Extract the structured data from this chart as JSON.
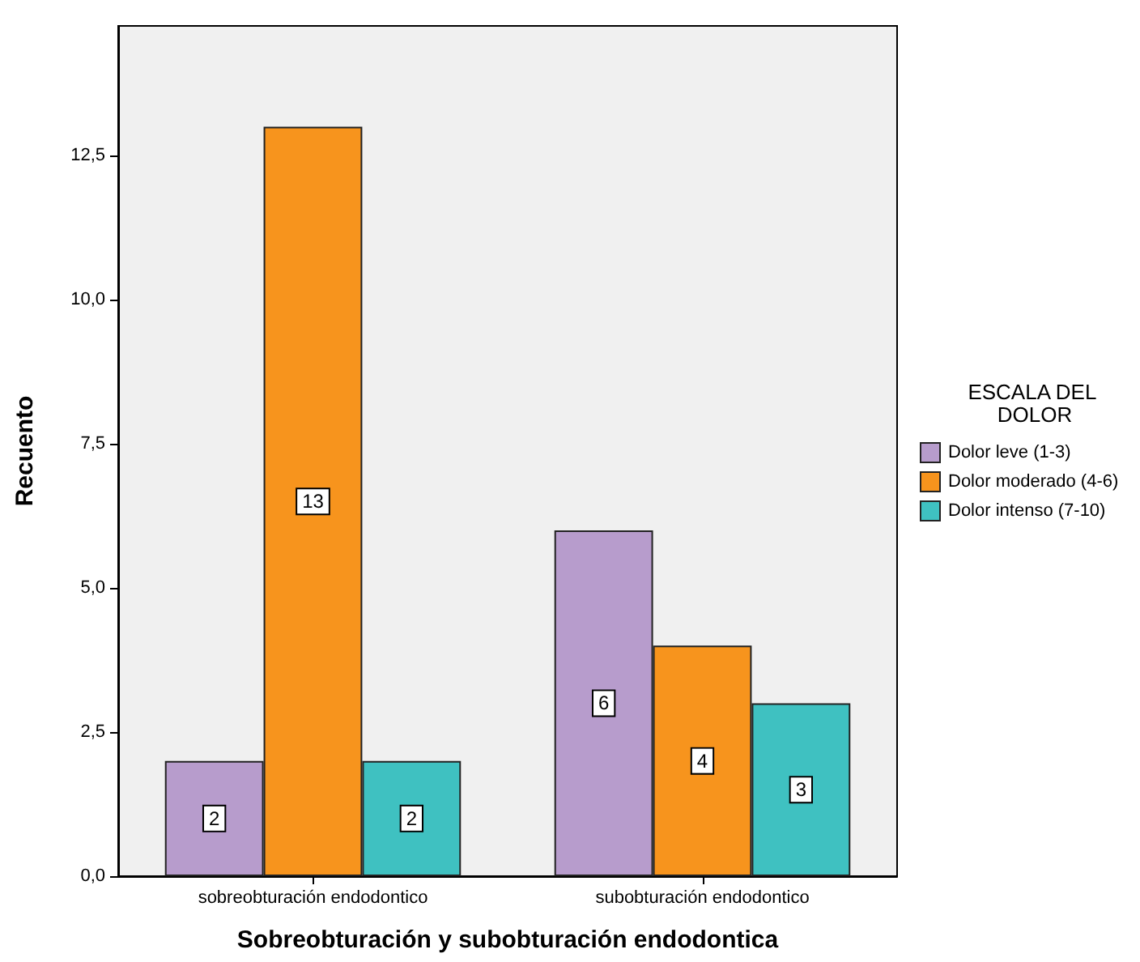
{
  "chart_data": {
    "type": "bar",
    "xlabel": "Sobreobturación y subobturación endodontica",
    "ylabel": "Recuento",
    "legend_title": "ESCALA DEL DOLOR",
    "categories": [
      "sobreobturación endodontico",
      "subobturación endodontico"
    ],
    "series": [
      {
        "name": "Dolor leve (1-3)",
        "color": "#b79ccc",
        "values": [
          2,
          6
        ]
      },
      {
        "name": "Dolor moderado (4-6)",
        "color": "#f7941d",
        "values": [
          13,
          4
        ]
      },
      {
        "name": "Dolor intenso (7-10)",
        "color": "#3fc1c1",
        "values": [
          2,
          3
        ]
      }
    ],
    "ylim": [
      0,
      14.75
    ],
    "yticks": [
      {
        "value": 0,
        "label": "0,0"
      },
      {
        "value": 2.5,
        "label": "2,5"
      },
      {
        "value": 5,
        "label": "5,0"
      },
      {
        "value": 7.5,
        "label": "7,5"
      },
      {
        "value": 10,
        "label": "10,0"
      },
      {
        "value": 12.5,
        "label": "12,5"
      }
    ],
    "grid": false,
    "legend": "right",
    "data_labels": true
  }
}
